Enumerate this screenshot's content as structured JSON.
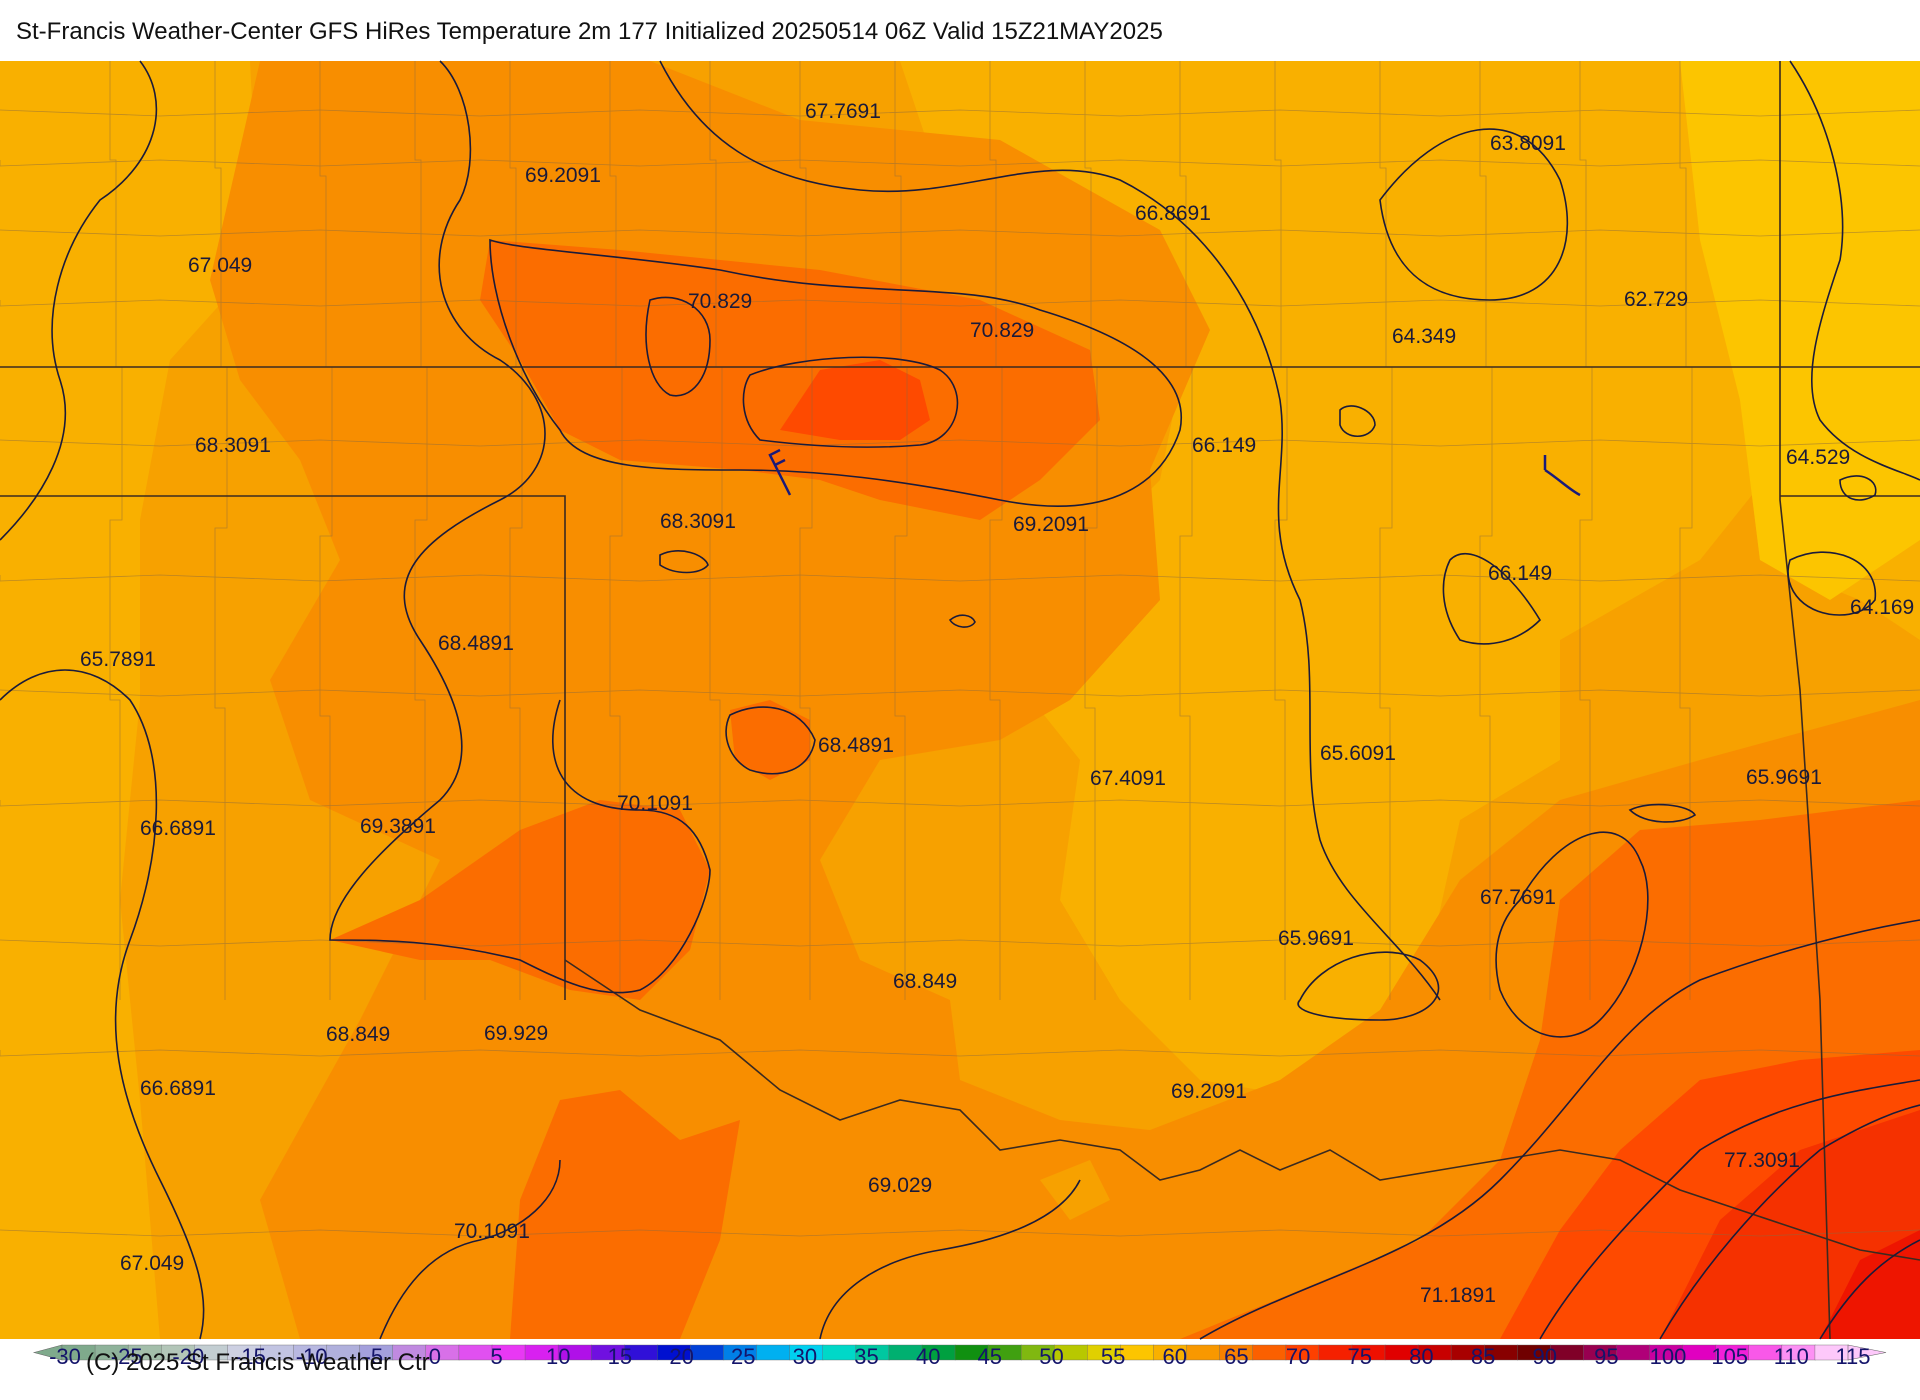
{
  "title": "St-Francis Weather-Center GFS HiRes Temperature 2m  177 Initialized 20250514 06Z Valid 15Z21MAY2025",
  "copyright": "(C) 2025 St Francis Weather Ctr",
  "colors": {
    "t60": "#fcc500",
    "t65": "#f9b000",
    "t67": "#f7a100",
    "t70": "#f88e00",
    "t72": "#fb6d00",
    "t75": "#fe4a00",
    "t77": "#f53100",
    "t80": "#ee1500",
    "contour": "#1b1b3a",
    "border": "#3a2a20",
    "county": "#8a6a40"
  },
  "map_labels": [
    {
      "text": "67.7691"
    },
    {
      "text": "69.2091"
    },
    {
      "text": "66.8691"
    },
    {
      "text": "63.8091"
    },
    {
      "text": "67.049"
    },
    {
      "text": "70.829"
    },
    {
      "text": "70.829"
    },
    {
      "text": "62.729"
    },
    {
      "text": "64.349"
    },
    {
      "text": "68.3091"
    },
    {
      "text": "66.149"
    },
    {
      "text": "64.529"
    },
    {
      "text": "68.3091"
    },
    {
      "text": "69.2091"
    },
    {
      "text": "66.149"
    },
    {
      "text": "64.169"
    },
    {
      "text": "68.4891"
    },
    {
      "text": "65.7891"
    },
    {
      "text": "68.4891"
    },
    {
      "text": "67.4091"
    },
    {
      "text": "65.6091"
    },
    {
      "text": "65.9691"
    },
    {
      "text": "70.1091"
    },
    {
      "text": "66.6891"
    },
    {
      "text": "69.3891"
    },
    {
      "text": "67.7691"
    },
    {
      "text": "65.9691"
    },
    {
      "text": "68.849"
    },
    {
      "text": "68.849"
    },
    {
      "text": "69.929"
    },
    {
      "text": "69.2091"
    },
    {
      "text": "66.6891"
    },
    {
      "text": "77.3091"
    },
    {
      "text": "69.029"
    },
    {
      "text": "70.1091"
    },
    {
      "text": "67.049"
    },
    {
      "text": "71.1891"
    }
  ],
  "colorbar": {
    "ticks": [
      "-30",
      "-25",
      "-20",
      "-15",
      "-10",
      "-5",
      "0",
      "5",
      "10",
      "15",
      "20",
      "25",
      "30",
      "35",
      "40",
      "45",
      "50",
      "55",
      "60",
      "65",
      "70",
      "75",
      "80",
      "85",
      "90",
      "95",
      "100",
      "105",
      "110",
      "115"
    ],
    "colors": [
      "#7faa8c",
      "#8fb39a",
      "#a3beaa",
      "#b3c6b8",
      "#c3ced2",
      "#cdd0e2",
      "#c2c4e2",
      "#b8b8e0",
      "#b0b0dc",
      "#a4a0dc",
      "#c08ae0",
      "#d870e8",
      "#e050f0",
      "#e838f4",
      "#d820f0",
      "#b010e8",
      "#7010e0",
      "#3010d8",
      "#0010d0",
      "#0040d8",
      "#0080e8",
      "#00b0f0",
      "#00d0f0",
      "#00d8c8",
      "#00c8a0",
      "#00b070",
      "#00a040",
      "#109010",
      "#40a010",
      "#80b810",
      "#b8c800",
      "#e0d000",
      "#fcc500",
      "#f9b000",
      "#f89800",
      "#f88000",
      "#fb6000",
      "#fe4000",
      "#f52000",
      "#ee1000",
      "#e00000",
      "#c80000",
      "#a80000",
      "#880000",
      "#700000",
      "#800028",
      "#980050",
      "#b00078",
      "#c800a0",
      "#e000c0",
      "#f020d8",
      "#f858e8",
      "#fc90f4",
      "#fdc8fa"
    ]
  }
}
